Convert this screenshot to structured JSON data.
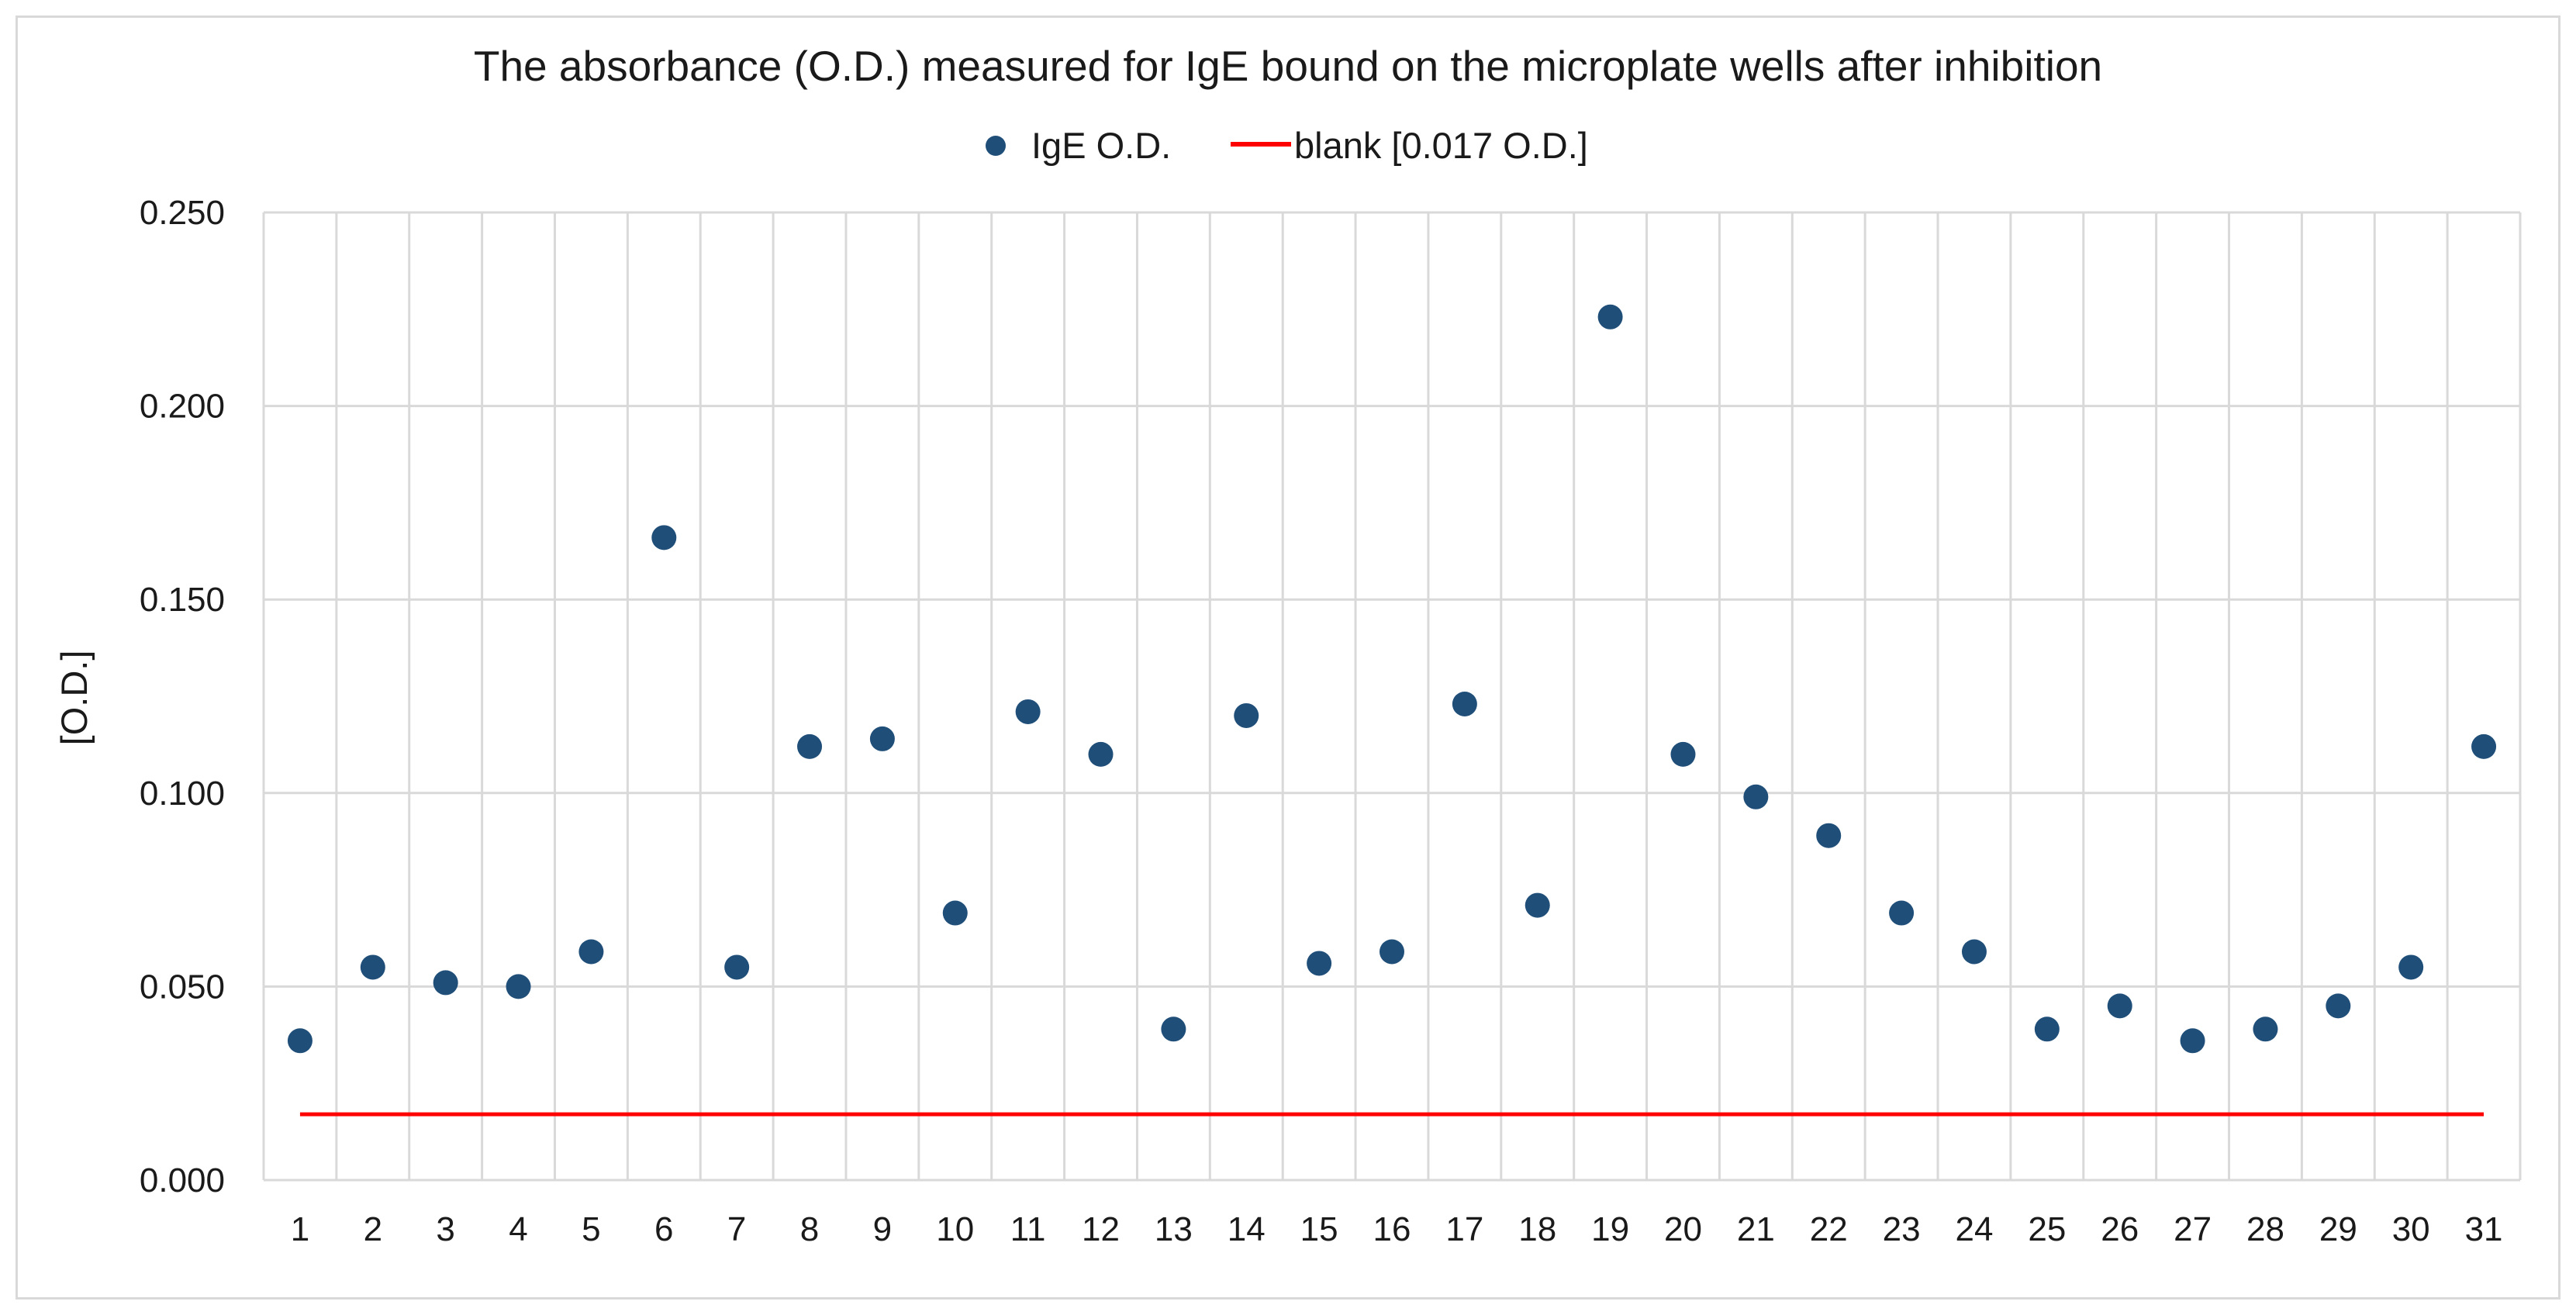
{
  "chart_data": {
    "type": "scatter",
    "title": "The absorbance (O.D.) measured for IgE bound on the microplate wells after inhibition",
    "xlabel": "",
    "ylabel": "[O.D.]",
    "ylim": [
      0,
      0.25
    ],
    "grid": true,
    "legend_position": "top-center",
    "categories": [
      "1",
      "2",
      "3",
      "4",
      "5",
      "6",
      "7",
      "8",
      "9",
      "10",
      "11",
      "12",
      "13",
      "14",
      "15",
      "16",
      "17",
      "18",
      "19",
      "20",
      "21",
      "22",
      "23",
      "24",
      "25",
      "26",
      "27",
      "28",
      "29",
      "30",
      "31"
    ],
    "y_ticks": [
      "0.000",
      "0.050",
      "0.100",
      "0.150",
      "0.200",
      "0.250"
    ],
    "y_tick_values": [
      0,
      0.05,
      0.1,
      0.15,
      0.2,
      0.25
    ],
    "series": [
      {
        "name": "IgE O.D.",
        "marker": "circle",
        "color": "#1f4e79",
        "values": [
          0.036,
          0.055,
          0.051,
          0.05,
          0.059,
          0.166,
          0.055,
          0.112,
          0.114,
          0.069,
          0.121,
          0.11,
          0.039,
          0.12,
          0.056,
          0.059,
          0.123,
          0.071,
          0.223,
          0.11,
          0.099,
          0.089,
          0.069,
          0.059,
          0.039,
          0.045,
          0.036,
          0.039,
          0.045,
          0.055,
          0.112
        ]
      }
    ],
    "reference_line": {
      "name": "blank [0.017 O.D.]",
      "value": 0.017,
      "color": "#ff0000"
    }
  }
}
